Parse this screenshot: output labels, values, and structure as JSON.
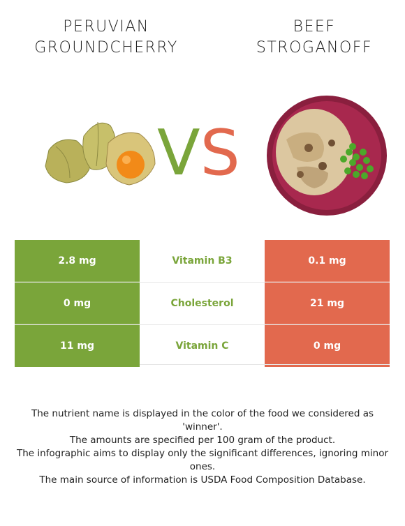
{
  "left_food": {
    "title_line1": "PERUVIAN",
    "title_line2": "GROUNDCHERRY"
  },
  "right_food": {
    "title_line1": "BEEF",
    "title_line2": "STROGANOFF"
  },
  "vs": {
    "v": "V",
    "s": "S"
  },
  "colors": {
    "winner_left": "#7aa53a",
    "winner_right": "#e2694e"
  },
  "rows": [
    {
      "left": "2.8 mg",
      "nutrient": "Vitamin B3",
      "right": "0.1 mg"
    },
    {
      "left": "0 mg",
      "nutrient": "Cholesterol",
      "right": "21 mg"
    },
    {
      "left": "11 mg",
      "nutrient": "Vitamin C",
      "right": "0 mg"
    }
  ],
  "footer": [
    "The nutrient name is displayed in the color of the food we considered as 'winner'.",
    "The amounts are specified per 100 gram of the product.",
    "The infographic aims to display only the significant differences, ignoring minor ones.",
    "The main source of information is USDA Food Composition Database."
  ]
}
